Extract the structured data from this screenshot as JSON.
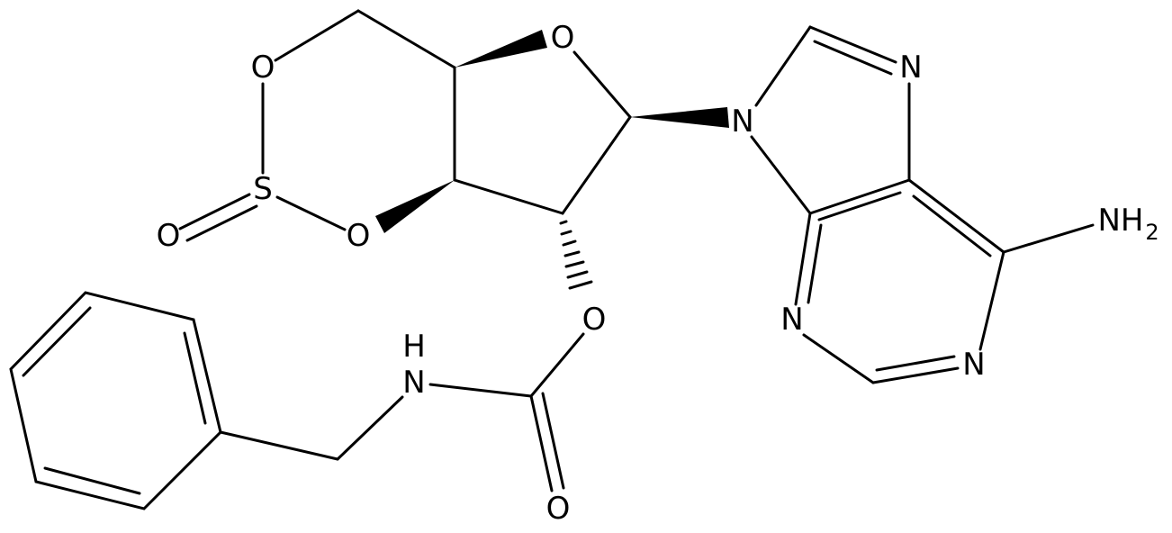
{
  "atoms": [
    {
      "label": "O"
    },
    {
      "label": "S"
    },
    {
      "label": "O"
    },
    {
      "label": "O"
    },
    {
      "label": "O"
    },
    {
      "label": "N"
    },
    {
      "label": "N"
    },
    {
      "label": "N"
    },
    {
      "label": "N"
    },
    {
      "label": "NH",
      "subscript": "2"
    },
    {
      "label": "O"
    },
    {
      "label": "O"
    },
    {
      "label": "N",
      "hydrogen": "H"
    }
  ]
}
